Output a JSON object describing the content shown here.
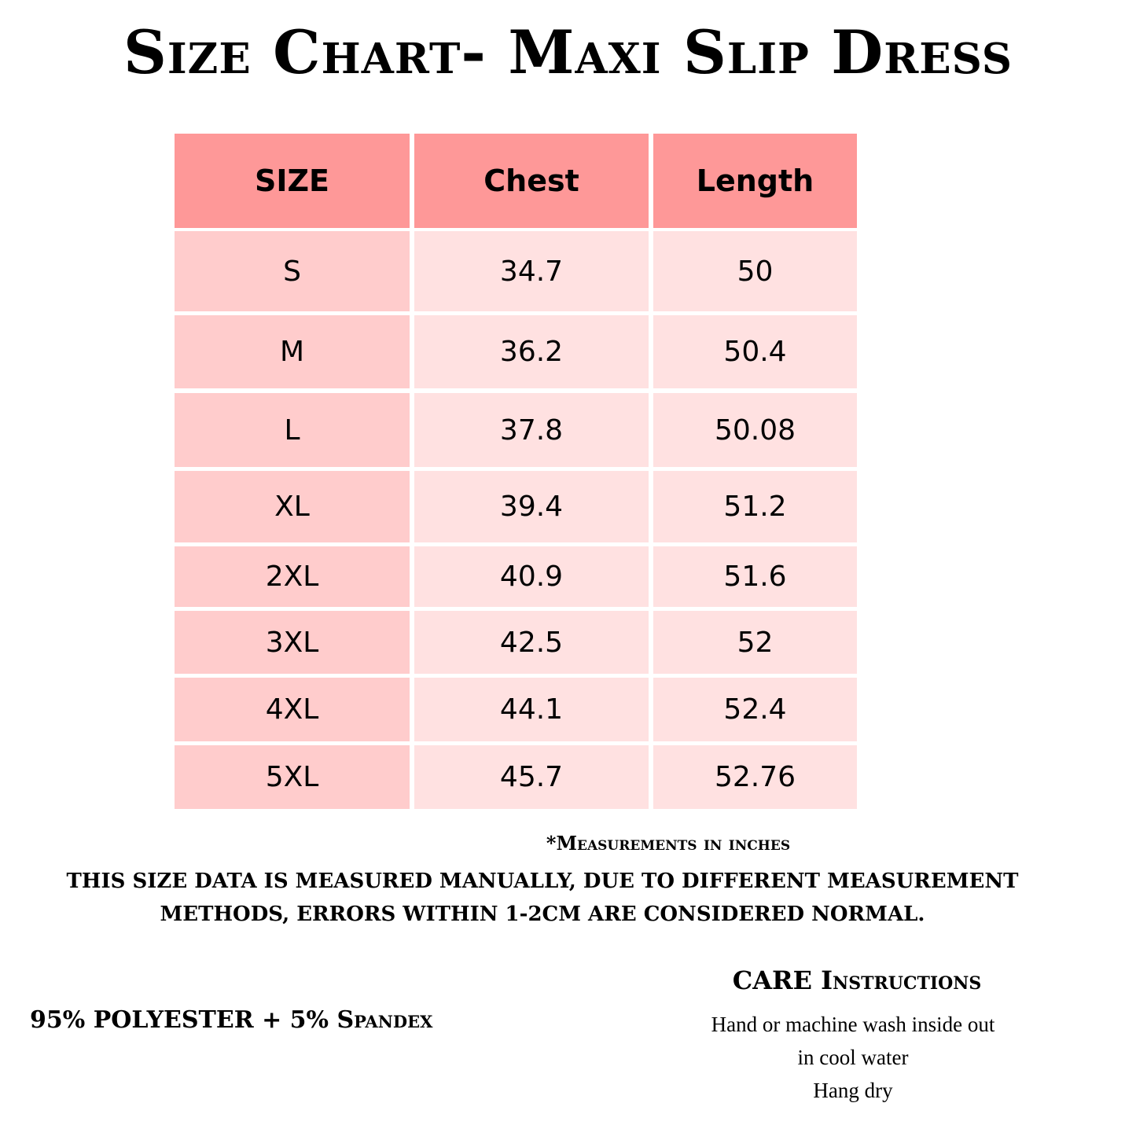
{
  "title": "Size Chart- Maxi Slip Dress",
  "colors": {
    "header": "#fe9898",
    "size_column": "#ffcccc",
    "value_columns": "#ffe1e1"
  },
  "table": {
    "headers": [
      "SIZE",
      "Chest",
      "Length"
    ],
    "rows": [
      [
        "S",
        "34.7",
        "50"
      ],
      [
        "M",
        "36.2",
        "50.4"
      ],
      [
        "L",
        "37.8",
        "50.08"
      ],
      [
        "XL",
        "39.4",
        "51.2"
      ],
      [
        "2XL",
        "40.9",
        "51.6"
      ],
      [
        "3XL",
        "42.5",
        "52"
      ],
      [
        "4XL",
        "44.1",
        "52.4"
      ],
      [
        "5XL",
        "45.7",
        "52.76"
      ]
    ]
  },
  "notes": {
    "units": "*Measurements in inches",
    "disclaimer": "THIS SIZE DATA IS MEASURED MANUALLY, DUE TO DIFFERENT MEASUREMENT METHODS, ERRORS WITHIN 1-2CM ARE CONSIDERED NORMAL."
  },
  "fabric": "95% POLYESTER + 5% Spandex",
  "care": {
    "title": "CARE Instructions",
    "lines": [
      "Hand or machine wash inside out",
      "in cool water",
      "Hang dry"
    ]
  }
}
